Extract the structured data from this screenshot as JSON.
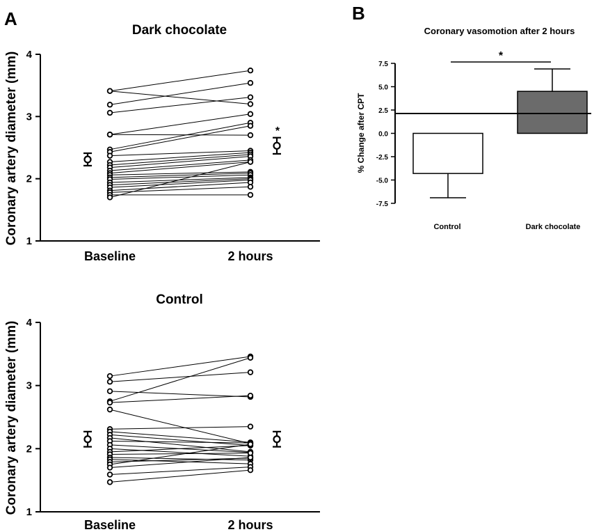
{
  "panels": {
    "a_label": "A",
    "b_label": "B"
  },
  "chart_data": [
    {
      "type": "scatter",
      "id": "dark",
      "title": "Dark chocolate",
      "ylabel": "Coronary artery diameter (mm)",
      "categories": [
        "Baseline",
        "2 hours"
      ],
      "ylim": [
        1,
        4
      ],
      "yticks": [
        "1",
        "2",
        "3",
        "4"
      ],
      "pairs": [
        [
          3.41,
          3.2
        ],
        [
          3.41,
          3.74
        ],
        [
          3.19,
          3.54
        ],
        [
          3.06,
          3.31
        ],
        [
          2.71,
          3.04
        ],
        [
          2.71,
          2.7
        ],
        [
          2.47,
          2.9
        ],
        [
          2.43,
          2.85
        ],
        [
          2.37,
          2.45
        ],
        [
          2.27,
          2.42
        ],
        [
          2.22,
          2.39
        ],
        [
          2.18,
          2.36
        ],
        [
          2.13,
          2.3
        ],
        [
          2.09,
          2.27
        ],
        [
          2.06,
          2.11
        ],
        [
          2.02,
          2.09
        ],
        [
          1.99,
          2.06
        ],
        [
          1.94,
          2.02
        ],
        [
          1.9,
          2.0
        ],
        [
          1.86,
          1.98
        ],
        [
          1.81,
          1.94
        ],
        [
          1.78,
          1.87
        ],
        [
          1.74,
          1.74
        ],
        [
          1.7,
          2.27
        ]
      ],
      "summary": [
        {
          "mean": 2.31,
          "low": 2.21,
          "high": 2.41
        },
        {
          "mean": 2.53,
          "low": 2.4,
          "high": 2.66
        }
      ],
      "annotation": "*"
    },
    {
      "type": "scatter",
      "id": "control",
      "title": "Control",
      "ylabel": "Coronary artery diameter (mm)",
      "categories": [
        "Baseline",
        "2 hours"
      ],
      "ylim": [
        1,
        4
      ],
      "yticks": [
        "1",
        "2",
        "3",
        "4"
      ],
      "pairs": [
        [
          3.15,
          3.46
        ],
        [
          3.06,
          3.21
        ],
        [
          2.91,
          2.82
        ],
        [
          2.75,
          3.44
        ],
        [
          2.73,
          2.84
        ],
        [
          2.62,
          2.08
        ],
        [
          2.31,
          2.35
        ],
        [
          2.27,
          2.1
        ],
        [
          2.22,
          2.05
        ],
        [
          2.17,
          1.95
        ],
        [
          2.12,
          2.09
        ],
        [
          2.06,
          1.94
        ],
        [
          2.0,
          1.88
        ],
        [
          1.95,
          2.05
        ],
        [
          1.91,
          1.93
        ],
        [
          1.86,
          1.82
        ],
        [
          1.83,
          1.76
        ],
        [
          1.79,
          1.85
        ],
        [
          1.75,
          2.07
        ],
        [
          1.7,
          1.86
        ],
        [
          1.59,
          1.71
        ],
        [
          1.47,
          1.66
        ]
      ],
      "summary": [
        {
          "mean": 2.15,
          "low": 2.03,
          "high": 2.27
        },
        {
          "mean": 2.15,
          "low": 2.03,
          "high": 2.27
        }
      ]
    },
    {
      "type": "bar",
      "id": "vasomotion",
      "title": "Coronary vasomotion after 2 hours",
      "ylabel": "% Change after CPT",
      "categories": [
        "Control",
        "Dark chocolate"
      ],
      "values": [
        -4.3,
        4.5
      ],
      "errors": [
        2.6,
        2.4
      ],
      "bar_colors": [
        "#ffffff",
        "#6b6b6b"
      ],
      "ylim": [
        -7.5,
        7.5
      ],
      "yticks": [
        "7.5",
        "5.0",
        "2.5",
        "0.0",
        "-2.5",
        "-5.0",
        "-7.5"
      ],
      "annotation": "*"
    }
  ]
}
